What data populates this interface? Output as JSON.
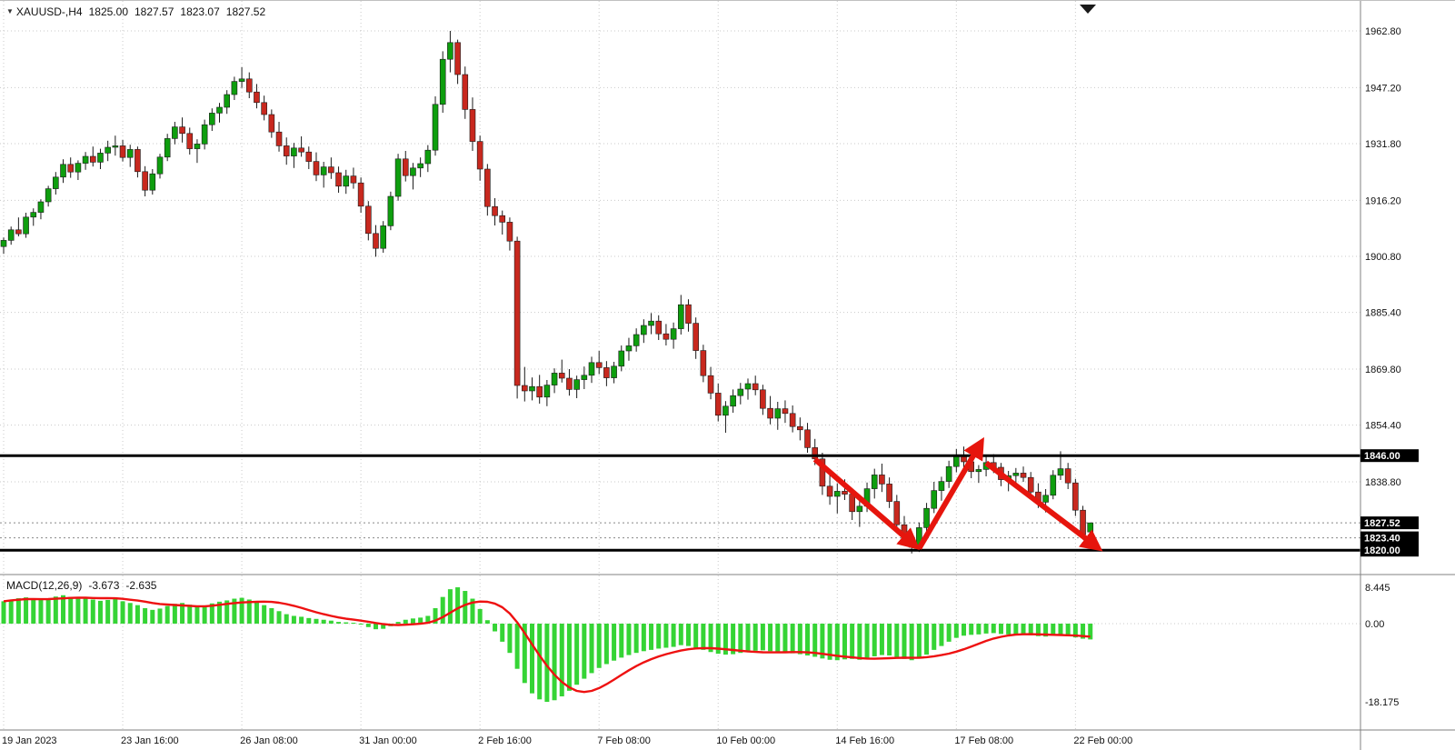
{
  "header": {
    "symbol": "XAUUSD-,H4",
    "open": "1825.00",
    "high": "1827.57",
    "low": "1823.07",
    "close": "1827.52"
  },
  "macd_panel": {
    "label": "MACD(12,26,9)",
    "value_main": "-3.673",
    "value_signal": "-2.635",
    "scale": [
      {
        "label": "8.445",
        "value": 8.445
      },
      {
        "label": "0.00",
        "value": 0
      },
      {
        "label": "-18.175",
        "value": -18.175
      }
    ]
  },
  "price_axis": {
    "ticks": [
      "1962.80",
      "1947.20",
      "1931.80",
      "1916.20",
      "1900.80",
      "1885.40",
      "1869.80",
      "1854.40",
      "1838.80"
    ],
    "badges": [
      {
        "label": "1846.00",
        "price": 1846.0
      },
      {
        "label": "1827.52",
        "price": 1827.52
      },
      {
        "label": "1823.40",
        "price": 1823.4
      },
      {
        "label": "1820.00",
        "price": 1820.0
      }
    ]
  },
  "time_axis": {
    "labels": [
      "19 Jan 2023",
      "23 Jan 16:00",
      "26 Jan 08:00",
      "31 Jan 00:00",
      "2 Feb 16:00",
      "7 Feb 08:00",
      "10 Feb 00:00",
      "14 Feb 16:00",
      "17 Feb 08:00",
      "22 Feb 00:00"
    ],
    "indices": [
      0,
      16,
      32,
      48,
      64,
      80,
      96,
      112,
      128,
      144
    ]
  },
  "colors": {
    "bull": "#0E9E0E",
    "bear": "#C8281E",
    "wick": "#1a1a1a",
    "body_outline": "#1a1a1a",
    "grid": "#c9c9c9",
    "dotted_level": "#888888",
    "level_line": "#000000",
    "macd_hist": "#35D435",
    "macd_signal": "#EE1111",
    "arrow": "#E6150D",
    "badge_bg": "#000000",
    "badge_fg": "#ffffff",
    "separator": "#808080",
    "shift_marker": "#1a1a1a"
  },
  "chart_data": {
    "type": "candlestick",
    "symbol": "XAUUSD",
    "timeframe": "H4",
    "price_scale": {
      "top_price": 1962.8,
      "top_y_hint": "top gridline",
      "tick_step": 15.4
    },
    "solid_levels": [
      1846.0,
      1820.0
    ],
    "dotted_levels": [
      1827.52,
      1823.4
    ],
    "arrows": [
      {
        "from": [
          109,
          1845.0
        ],
        "to": [
          122,
          1822.0
        ]
      },
      {
        "from": [
          123,
          1820.5
        ],
        "to": [
          131,
          1848.5
        ]
      },
      {
        "from": [
          132,
          1844.0
        ],
        "to": [
          146.5,
          1821.5
        ]
      }
    ],
    "candles": [
      [
        1903.5,
        1906.0,
        1901.5,
        1905.2
      ],
      [
        1905.2,
        1909.0,
        1904.0,
        1908.1
      ],
      [
        1908.1,
        1911.5,
        1906.3,
        1907.0
      ],
      [
        1907.0,
        1912.8,
        1905.9,
        1911.6
      ],
      [
        1911.6,
        1914.0,
        1909.2,
        1912.9
      ],
      [
        1912.9,
        1916.5,
        1911.0,
        1915.8
      ],
      [
        1915.8,
        1920.2,
        1914.5,
        1919.4
      ],
      [
        1919.4,
        1924.0,
        1917.8,
        1922.6
      ],
      [
        1922.6,
        1927.5,
        1921.0,
        1926.1
      ],
      [
        1926.1,
        1928.0,
        1922.4,
        1924.0
      ],
      [
        1924.0,
        1927.2,
        1921.8,
        1926.4
      ],
      [
        1926.4,
        1929.5,
        1924.6,
        1928.3
      ],
      [
        1928.3,
        1931.0,
        1925.5,
        1926.7
      ],
      [
        1926.7,
        1930.4,
        1924.8,
        1929.2
      ],
      [
        1929.2,
        1932.6,
        1927.0,
        1930.8
      ],
      [
        1930.8,
        1934.0,
        1928.5,
        1931.2
      ],
      [
        1931.2,
        1932.8,
        1926.9,
        1928.0
      ],
      [
        1928.0,
        1931.5,
        1925.4,
        1930.2
      ],
      [
        1930.2,
        1931.0,
        1922.5,
        1924.1
      ],
      [
        1924.1,
        1925.6,
        1917.3,
        1919.0
      ],
      [
        1919.0,
        1924.8,
        1917.8,
        1923.5
      ],
      [
        1923.5,
        1929.0,
        1922.2,
        1928.1
      ],
      [
        1928.1,
        1934.5,
        1927.0,
        1933.2
      ],
      [
        1933.2,
        1937.8,
        1931.6,
        1936.4
      ],
      [
        1936.4,
        1939.0,
        1932.1,
        1934.6
      ],
      [
        1934.6,
        1936.2,
        1928.8,
        1930.4
      ],
      [
        1930.4,
        1933.0,
        1926.5,
        1931.7
      ],
      [
        1931.7,
        1938.4,
        1930.2,
        1937.0
      ],
      [
        1937.0,
        1941.5,
        1935.3,
        1940.2
      ],
      [
        1940.2,
        1943.0,
        1937.6,
        1941.8
      ],
      [
        1941.8,
        1946.5,
        1940.0,
        1945.3
      ],
      [
        1945.3,
        1950.2,
        1943.8,
        1948.9
      ],
      [
        1948.9,
        1952.8,
        1947.1,
        1949.6
      ],
      [
        1949.6,
        1951.4,
        1944.3,
        1946.0
      ],
      [
        1946.0,
        1948.2,
        1941.5,
        1943.1
      ],
      [
        1943.1,
        1945.0,
        1938.2,
        1939.8
      ],
      [
        1939.8,
        1941.2,
        1933.4,
        1935.0
      ],
      [
        1935.0,
        1937.8,
        1929.6,
        1931.2
      ],
      [
        1931.2,
        1933.5,
        1926.0,
        1928.4
      ],
      [
        1928.4,
        1932.0,
        1925.1,
        1930.6
      ],
      [
        1930.6,
        1933.8,
        1928.2,
        1929.5
      ],
      [
        1929.5,
        1931.0,
        1924.8,
        1926.9
      ],
      [
        1926.9,
        1929.4,
        1921.5,
        1923.2
      ],
      [
        1923.2,
        1926.8,
        1919.7,
        1925.4
      ],
      [
        1925.4,
        1928.0,
        1922.1,
        1923.8
      ],
      [
        1923.8,
        1925.5,
        1918.3,
        1920.1
      ],
      [
        1920.1,
        1924.6,
        1918.0,
        1922.9
      ],
      [
        1922.9,
        1925.2,
        1919.4,
        1921.0
      ],
      [
        1921.0,
        1922.5,
        1912.8,
        1914.6
      ],
      [
        1914.6,
        1916.0,
        1905.2,
        1907.1
      ],
      [
        1907.1,
        1909.4,
        1900.7,
        1903.0
      ],
      [
        1903.0,
        1910.5,
        1901.8,
        1909.2
      ],
      [
        1909.2,
        1918.6,
        1908.0,
        1917.3
      ],
      [
        1917.3,
        1929.0,
        1916.1,
        1927.6
      ],
      [
        1927.6,
        1929.8,
        1921.4,
        1923.0
      ],
      [
        1923.0,
        1926.5,
        1919.2,
        1925.1
      ],
      [
        1925.1,
        1928.0,
        1922.6,
        1926.3
      ],
      [
        1926.3,
        1931.4,
        1924.0,
        1930.0
      ],
      [
        1930.0,
        1944.8,
        1928.5,
        1942.6
      ],
      [
        1942.6,
        1957.2,
        1940.3,
        1955.0
      ],
      [
        1955.0,
        1962.8,
        1951.4,
        1959.6
      ],
      [
        1959.6,
        1960.4,
        1948.2,
        1950.8
      ],
      [
        1950.8,
        1953.0,
        1938.6,
        1941.2
      ],
      [
        1941.2,
        1944.5,
        1929.8,
        1932.4
      ],
      [
        1932.4,
        1934.0,
        1921.6,
        1924.8
      ],
      [
        1924.8,
        1926.2,
        1912.0,
        1914.5
      ],
      [
        1914.5,
        1916.8,
        1909.3,
        1912.0
      ],
      [
        1912.0,
        1913.4,
        1906.8,
        1910.2
      ],
      [
        1910.2,
        1911.5,
        1902.4,
        1905.0
      ],
      [
        1905.0,
        1906.2,
        1861.7,
        1865.3
      ],
      [
        1865.3,
        1870.4,
        1860.9,
        1863.8
      ],
      [
        1863.8,
        1867.5,
        1861.2,
        1865.0
      ],
      [
        1865.0,
        1868.2,
        1860.3,
        1862.1
      ],
      [
        1862.1,
        1866.8,
        1859.6,
        1865.4
      ],
      [
        1865.4,
        1870.0,
        1863.2,
        1868.7
      ],
      [
        1868.7,
        1872.4,
        1866.1,
        1867.3
      ],
      [
        1867.3,
        1869.8,
        1862.5,
        1864.2
      ],
      [
        1864.2,
        1868.0,
        1861.8,
        1866.9
      ],
      [
        1866.9,
        1870.5,
        1864.3,
        1868.1
      ],
      [
        1868.1,
        1873.2,
        1866.0,
        1871.6
      ],
      [
        1871.6,
        1874.8,
        1868.4,
        1870.2
      ],
      [
        1870.2,
        1872.0,
        1865.1,
        1867.4
      ],
      [
        1867.4,
        1871.8,
        1865.9,
        1870.6
      ],
      [
        1870.6,
        1876.3,
        1869.2,
        1874.8
      ],
      [
        1874.8,
        1878.4,
        1872.1,
        1876.2
      ],
      [
        1876.2,
        1881.0,
        1874.6,
        1879.3
      ],
      [
        1879.3,
        1883.5,
        1877.0,
        1881.8
      ],
      [
        1881.8,
        1885.2,
        1879.4,
        1883.0
      ],
      [
        1883.0,
        1884.6,
        1877.8,
        1879.5
      ],
      [
        1879.5,
        1882.2,
        1876.3,
        1878.0
      ],
      [
        1878.0,
        1882.6,
        1875.4,
        1880.9
      ],
      [
        1880.9,
        1890.2,
        1879.3,
        1887.5
      ],
      [
        1887.5,
        1889.0,
        1880.1,
        1882.4
      ],
      [
        1882.4,
        1884.0,
        1872.6,
        1874.9
      ],
      [
        1874.9,
        1876.5,
        1866.2,
        1868.0
      ],
      [
        1868.0,
        1870.4,
        1861.5,
        1863.2
      ],
      [
        1863.2,
        1865.8,
        1855.4,
        1857.1
      ],
      [
        1857.1,
        1861.0,
        1852.3,
        1859.6
      ],
      [
        1859.6,
        1864.2,
        1857.8,
        1862.5
      ],
      [
        1862.5,
        1866.0,
        1860.1,
        1864.3
      ],
      [
        1864.3,
        1867.2,
        1861.4,
        1865.8
      ],
      [
        1865.8,
        1868.0,
        1862.6,
        1864.1
      ],
      [
        1864.1,
        1865.5,
        1857.2,
        1859.0
      ],
      [
        1859.0,
        1862.4,
        1854.6,
        1856.3
      ],
      [
        1856.3,
        1860.8,
        1853.1,
        1858.9
      ],
      [
        1858.9,
        1861.2,
        1855.0,
        1857.6
      ],
      [
        1857.6,
        1859.8,
        1852.4,
        1854.0
      ],
      [
        1854.0,
        1856.5,
        1850.2,
        1853.1
      ],
      [
        1853.1,
        1855.0,
        1846.8,
        1848.2
      ],
      [
        1848.2,
        1850.6,
        1843.4,
        1845.1
      ],
      [
        1845.1,
        1846.8,
        1835.2,
        1837.6
      ],
      [
        1837.6,
        1841.0,
        1832.5,
        1834.8
      ],
      [
        1834.8,
        1838.4,
        1830.1,
        1836.2
      ],
      [
        1836.2,
        1839.5,
        1833.8,
        1835.4
      ],
      [
        1835.4,
        1837.0,
        1828.3,
        1830.6
      ],
      [
        1830.6,
        1834.8,
        1826.4,
        1832.1
      ],
      [
        1832.1,
        1838.6,
        1830.5,
        1836.9
      ],
      [
        1836.9,
        1842.4,
        1834.2,
        1840.7
      ],
      [
        1840.7,
        1843.8,
        1836.0,
        1838.2
      ],
      [
        1838.2,
        1840.0,
        1831.6,
        1833.4
      ],
      [
        1833.4,
        1835.2,
        1825.8,
        1827.0
      ],
      [
        1827.0,
        1829.4,
        1821.3,
        1823.6
      ],
      [
        1823.6,
        1825.0,
        1819.1,
        1820.8
      ],
      [
        1820.8,
        1827.6,
        1819.5,
        1826.2
      ],
      [
        1826.2,
        1833.0,
        1824.4,
        1831.5
      ],
      [
        1831.5,
        1838.8,
        1830.2,
        1836.4
      ],
      [
        1836.4,
        1840.2,
        1833.6,
        1838.9
      ],
      [
        1838.9,
        1844.6,
        1837.1,
        1843.0
      ],
      [
        1843.0,
        1847.8,
        1841.4,
        1846.2
      ],
      [
        1846.2,
        1848.5,
        1842.0,
        1844.3
      ],
      [
        1844.3,
        1846.0,
        1839.8,
        1841.6
      ],
      [
        1841.6,
        1843.4,
        1838.5,
        1842.2
      ],
      [
        1842.2,
        1845.8,
        1840.3,
        1844.1
      ],
      [
        1844.1,
        1846.4,
        1841.2,
        1842.8
      ],
      [
        1842.8,
        1844.0,
        1837.6,
        1839.4
      ],
      [
        1839.4,
        1841.8,
        1836.2,
        1840.5
      ],
      [
        1840.5,
        1842.6,
        1838.0,
        1841.2
      ],
      [
        1841.2,
        1843.0,
        1838.8,
        1840.0
      ],
      [
        1840.0,
        1841.5,
        1834.2,
        1836.0
      ],
      [
        1836.0,
        1838.4,
        1831.6,
        1833.2
      ],
      [
        1833.2,
        1836.8,
        1830.4,
        1835.1
      ],
      [
        1835.1,
        1842.0,
        1834.0,
        1840.6
      ],
      [
        1840.6,
        1847.2,
        1839.3,
        1842.4
      ],
      [
        1842.4,
        1844.0,
        1836.8,
        1838.5
      ],
      [
        1838.5,
        1839.6,
        1829.4,
        1831.0
      ],
      [
        1831.0,
        1832.2,
        1822.9,
        1824.3
      ],
      [
        1825.0,
        1827.57,
        1823.07,
        1827.52
      ]
    ],
    "macd_histogram": [
      5.2,
      5.6,
      5.9,
      6.1,
      5.8,
      5.5,
      5.9,
      6.3,
      6.6,
      6.2,
      5.8,
      6.0,
      5.6,
      5.3,
      5.5,
      5.7,
      5.2,
      4.8,
      4.3,
      3.6,
      3.2,
      3.5,
      4.1,
      4.6,
      4.8,
      4.4,
      3.9,
      4.2,
      4.7,
      5.1,
      5.4,
      5.8,
      6.0,
      5.6,
      5.0,
      4.3,
      3.6,
      2.9,
      2.2,
      1.8,
      1.6,
      1.3,
      1.1,
      0.9,
      0.7,
      0.4,
      0.3,
      0.2,
      -0.2,
      -0.8,
      -1.3,
      -1.2,
      -0.6,
      0.4,
      0.9,
      1.2,
      1.4,
      1.8,
      3.6,
      6.2,
      8.0,
      8.445,
      7.6,
      5.8,
      3.4,
      0.8,
      -1.8,
      -4.2,
      -6.8,
      -10.5,
      -13.8,
      -16.2,
      -17.6,
      -18.175,
      -17.8,
      -16.9,
      -15.6,
      -14.2,
      -12.8,
      -11.5,
      -10.3,
      -9.4,
      -8.6,
      -7.9,
      -7.3,
      -6.8,
      -6.4,
      -6.1,
      -5.8,
      -5.6,
      -5.4,
      -5.0,
      -5.2,
      -5.6,
      -6.1,
      -6.6,
      -7.0,
      -7.2,
      -7.1,
      -6.8,
      -6.5,
      -6.3,
      -6.2,
      -6.4,
      -6.6,
      -6.7,
      -6.9,
      -7.1,
      -7.4,
      -7.7,
      -8.1,
      -8.4,
      -8.5,
      -8.3,
      -8.2,
      -8.4,
      -8.1,
      -7.6,
      -7.3,
      -7.4,
      -7.8,
      -8.2,
      -8.5,
      -8.1,
      -7.2,
      -6.1,
      -5.2,
      -4.2,
      -3.3,
      -2.8,
      -2.6,
      -2.5,
      -2.3,
      -2.2,
      -2.4,
      -2.5,
      -2.4,
      -2.5,
      -2.7,
      -2.9,
      -3.0,
      -2.8,
      -2.6,
      -2.9,
      -3.2,
      -3.5,
      -3.673
    ]
  }
}
